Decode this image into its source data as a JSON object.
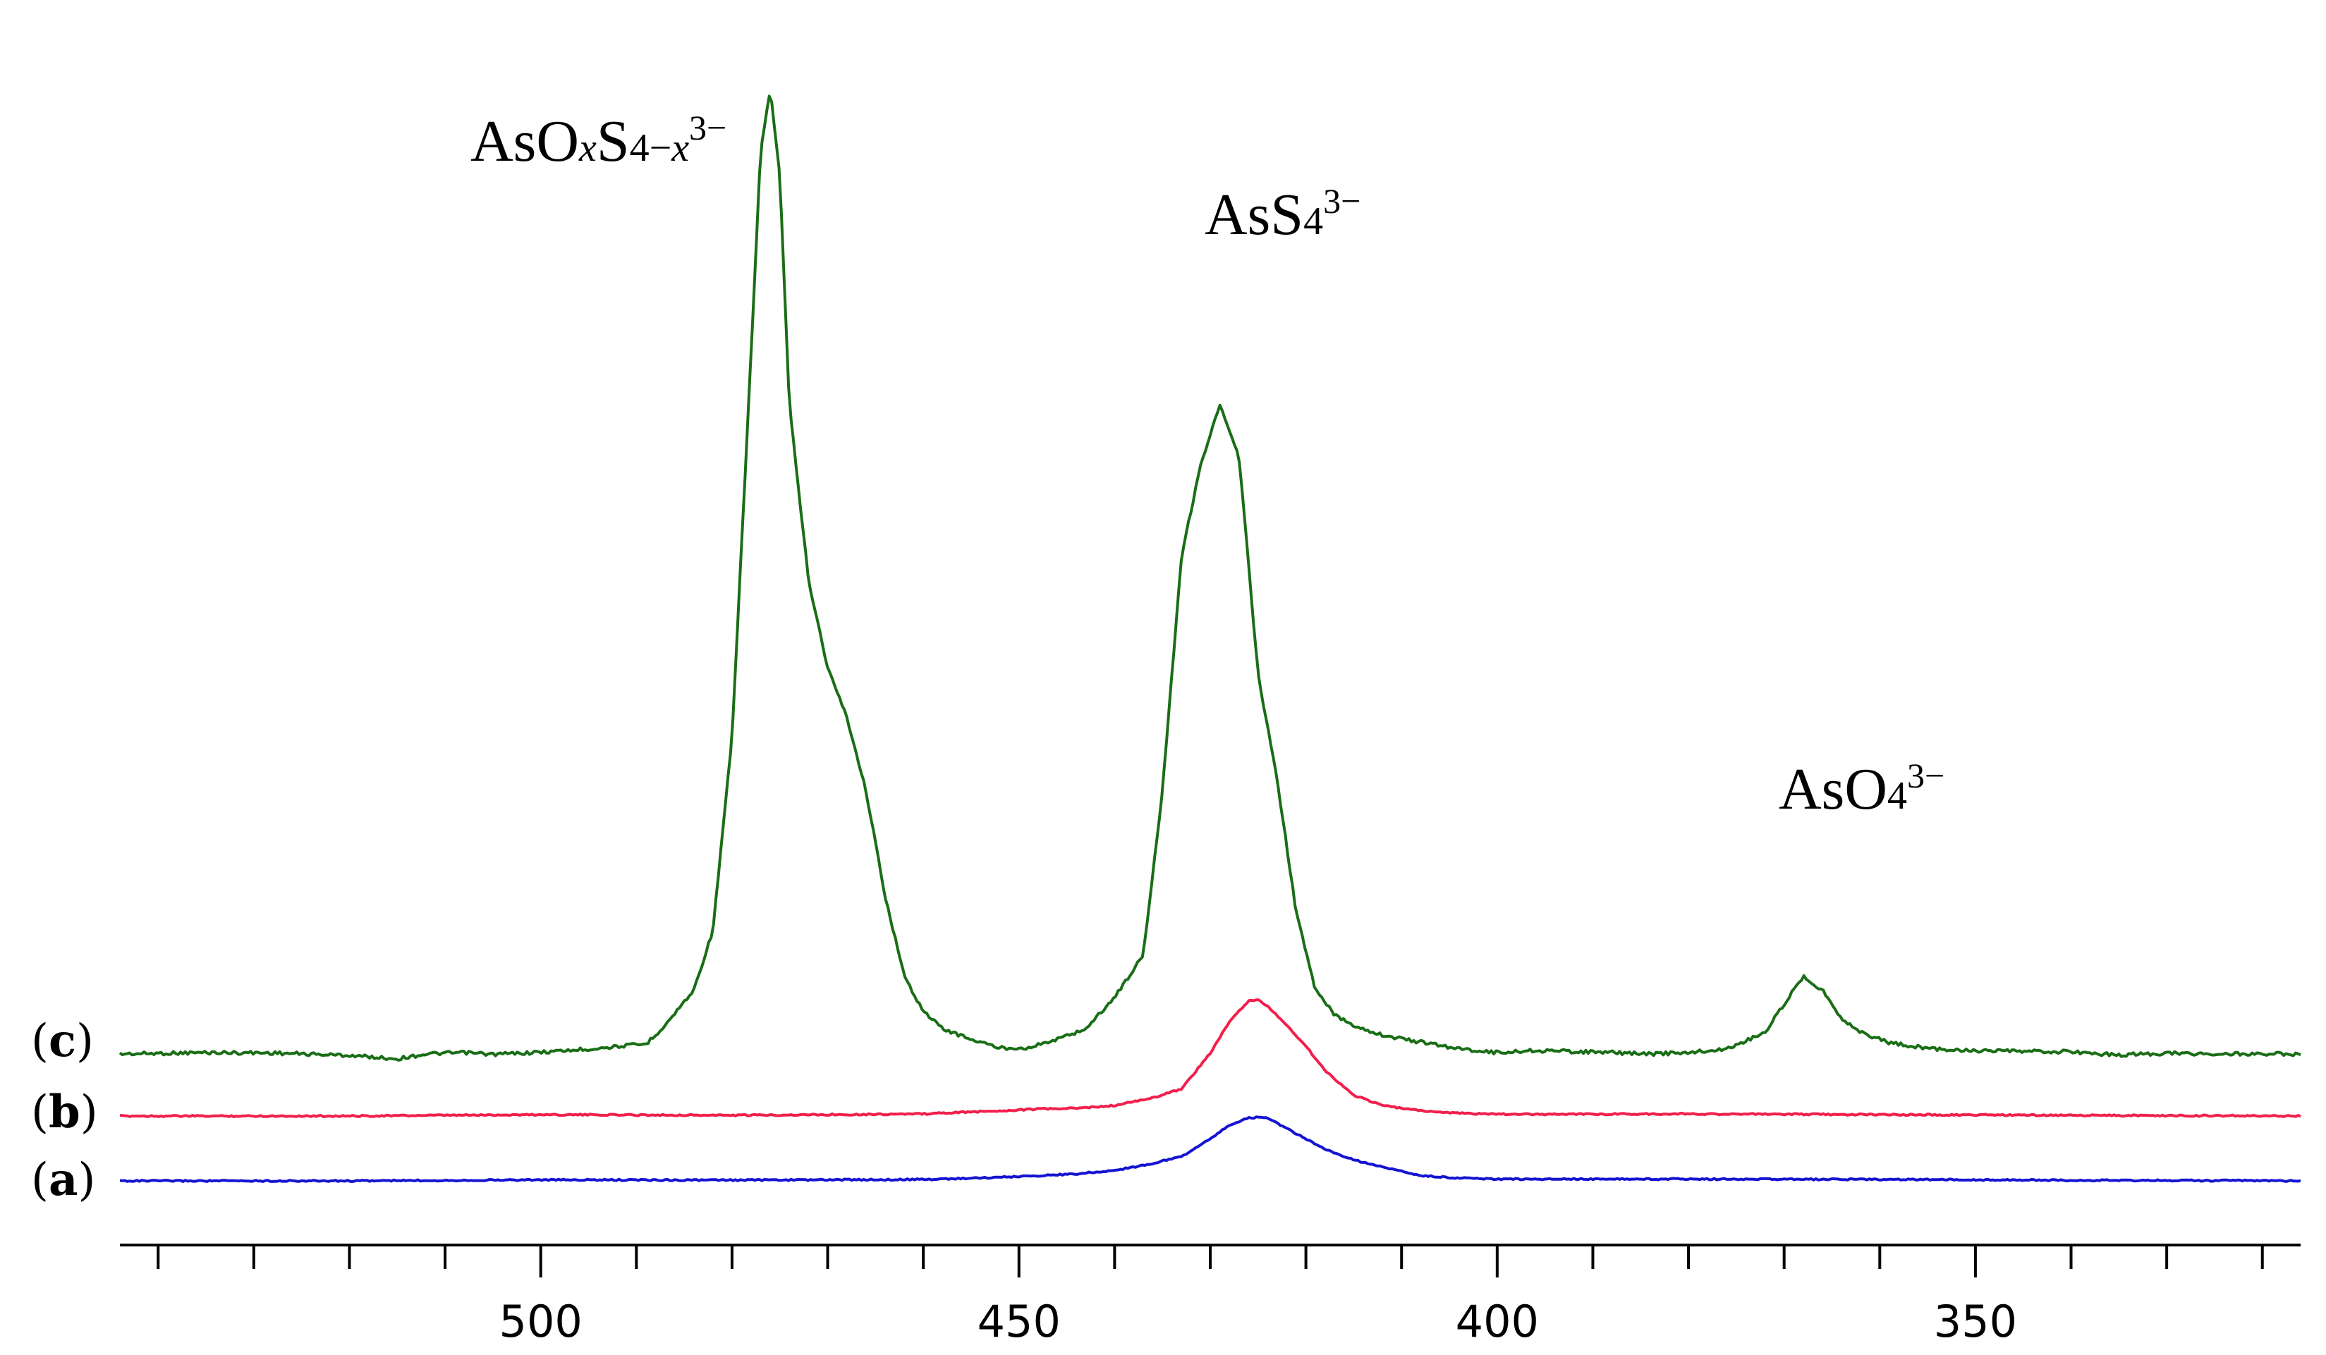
{
  "chart_data": {
    "type": "line",
    "title": "",
    "xlabel": "",
    "ylabel": "",
    "xlim": [
      544,
      316
    ],
    "x_reversed": true,
    "x_major_ticks": [
      500,
      450,
      400,
      350
    ],
    "x_minor_tick_step": 10,
    "grid": false,
    "annotations": [
      {
        "id": "asoxs",
        "parts": [
          [
            "AsO",
            ""
          ],
          [
            "x",
            "sub-italic"
          ],
          [
            "S",
            ""
          ],
          [
            "4−",
            "sub"
          ],
          [
            "x",
            "sub-italic"
          ],
          [
            "3−",
            "sup"
          ]
        ],
        "x": 476
      },
      {
        "id": "ass4",
        "parts": [
          [
            "AsS",
            ""
          ],
          [
            "4",
            "sub"
          ],
          [
            "3−",
            "sup"
          ]
        ],
        "x": 426
      },
      {
        "id": "aso4",
        "parts": [
          [
            "AsO",
            ""
          ],
          [
            "4",
            "sub"
          ],
          [
            "3−",
            "sup"
          ]
        ],
        "x": 368
      }
    ],
    "series": [
      {
        "name": "(c)",
        "label_open": "(",
        "label_letter": "c",
        "label_close": ")",
        "color": "#1a6e16",
        "baseline": 0,
        "x": [
          544,
          535,
          528,
          520,
          515,
          512,
          508,
          505,
          500,
          495,
          491,
          489,
          487,
          484,
          482,
          480,
          478,
          477,
          476,
          475,
          474,
          472,
          470,
          468,
          466,
          464,
          462,
          460,
          458,
          455,
          452,
          449,
          446,
          443,
          440,
          437,
          435,
          433,
          431,
          429,
          427,
          426,
          425,
          423,
          421,
          419,
          417,
          415,
          413,
          411,
          408,
          404,
          400,
          396,
          392,
          388,
          384,
          380,
          376,
          372,
          370,
          368,
          366,
          364,
          362,
          359,
          355,
          350,
          345,
          340,
          335,
          330,
          325,
          320,
          316
        ],
        "y": [
          -0.2,
          0.2,
          0.1,
          -0.6,
          -1.6,
          -0.2,
          0.2,
          -0.3,
          0.3,
          1.2,
          2.2,
          2.6,
          8,
          18,
          35,
          90,
          200,
          258,
          275,
          250,
          185,
          135,
          110,
          96,
          75,
          45,
          22,
          12,
          7,
          4,
          1.5,
          1.6,
          4,
          7,
          16,
          28,
          75,
          142,
          168,
          185,
          170,
          140,
          108,
          78,
          40,
          18,
          11,
          8,
          6,
          4.6,
          3.2,
          1.3,
          0.2,
          0.8,
          0.5,
          0.2,
          -0.2,
          0.2,
          1.2,
          6,
          14,
          22,
          18,
          10,
          6,
          3,
          1.4,
          0.7,
          0.5,
          0.4,
          -0.5,
          0,
          -0.2,
          -0.1,
          -0.3
        ]
      },
      {
        "name": "(b)",
        "label_open": "(",
        "label_letter": "b",
        "label_close": ")",
        "color": "#f21f4c",
        "baseline": 0,
        "x": [
          544,
          520,
          500,
          480,
          460,
          452,
          448,
          444,
          440,
          436,
          433,
          430,
          428,
          426,
          425,
          424,
          422,
          420,
          418,
          415,
          412,
          408,
          404,
          400,
          380,
          360,
          340,
          316
        ],
        "y": [
          0,
          0,
          0.4,
          0.2,
          0.6,
          1.5,
          2.0,
          2.2,
          3.0,
          5.2,
          7.8,
          18,
          27,
          33,
          33.2,
          31.5,
          26,
          20,
          13,
          6,
          3,
          1.5,
          0.8,
          0.5,
          0.6,
          0.4,
          0.2,
          0
        ]
      },
      {
        "name": "(a)",
        "label_open": "(",
        "label_letter": "a",
        "label_close": ")",
        "color": "#1414d2",
        "baseline": 0,
        "x": [
          544,
          520,
          500,
          480,
          460,
          452,
          448,
          444,
          440,
          436,
          433,
          430,
          428,
          426,
          425,
          424,
          422,
          420,
          418,
          415,
          412,
          408,
          404,
          400,
          380,
          360,
          340,
          316
        ],
        "y": [
          0,
          0,
          0.3,
          0.2,
          0.4,
          1.0,
          1.5,
          2.0,
          3.0,
          5.0,
          7.0,
          12,
          16,
          18,
          18.2,
          18,
          15,
          12,
          9,
          6,
          4,
          1.5,
          0.8,
          0.5,
          0.5,
          0.4,
          0.2,
          0
        ]
      }
    ]
  }
}
